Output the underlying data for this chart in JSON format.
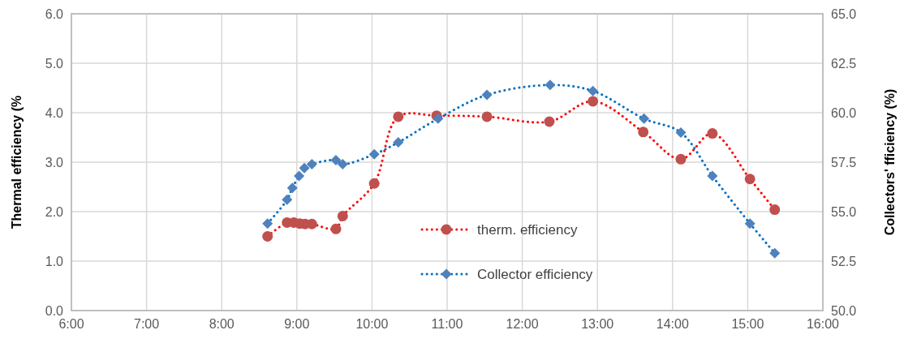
{
  "chart_data": {
    "type": "line",
    "ylabel": "Thermal efficiency (%",
    "y2label": "Collectors' fficiency (%)",
    "xlim": [
      6,
      16
    ],
    "xticks": [
      {
        "value": 6,
        "label": "6:00"
      },
      {
        "value": 7,
        "label": "7:00"
      },
      {
        "value": 8,
        "label": "8:00"
      },
      {
        "value": 9,
        "label": "9:00"
      },
      {
        "value": 10,
        "label": "10:00"
      },
      {
        "value": 11,
        "label": "11:00"
      },
      {
        "value": 12,
        "label": "12:00"
      },
      {
        "value": 13,
        "label": "13:00"
      },
      {
        "value": 14,
        "label": "14:00"
      },
      {
        "value": 15,
        "label": "15:00"
      },
      {
        "value": 16,
        "label": "16:00"
      }
    ],
    "ylim": [
      0,
      6
    ],
    "yticks": [
      {
        "value": 0,
        "label": "0.0"
      },
      {
        "value": 1,
        "label": "1.0"
      },
      {
        "value": 2,
        "label": "2.0"
      },
      {
        "value": 3,
        "label": "3.0"
      },
      {
        "value": 4,
        "label": "4.0"
      },
      {
        "value": 5,
        "label": "5.0"
      },
      {
        "value": 6,
        "label": "6.0"
      }
    ],
    "y2lim": [
      50,
      65
    ],
    "y2ticks": [
      {
        "value": 50,
        "label": "50.0"
      },
      {
        "value": 52.5,
        "label": "52.5"
      },
      {
        "value": 55,
        "label": "55.0"
      },
      {
        "value": 57.5,
        "label": "57.5"
      },
      {
        "value": 60,
        "label": "60.0"
      },
      {
        "value": 62.5,
        "label": "62.5"
      },
      {
        "value": 65,
        "label": "65.0"
      }
    ],
    "grid": true,
    "legend": "bottom",
    "line_style": "dotted",
    "series": [
      {
        "name": "therm. efficiency",
        "color": "#c0504d",
        "marker": "circle",
        "x": [
          8.61,
          8.87,
          8.96,
          9.04,
          9.11,
          9.2,
          9.52,
          9.61,
          10.03,
          10.35,
          10.86,
          11.53,
          12.36,
          12.94,
          13.61,
          14.11,
          14.53,
          15.03,
          15.36
        ],
        "values": [
          1.5,
          1.78,
          1.78,
          1.76,
          1.75,
          1.75,
          1.65,
          1.91,
          2.57,
          3.92,
          3.94,
          3.92,
          3.82,
          4.23,
          3.61,
          3.06,
          3.58,
          2.66,
          2.04
        ]
      },
      {
        "name": "Collector efficiency",
        "color": "#4f81bd",
        "marker": "diamond",
        "axis": "y2",
        "x": [
          8.61,
          8.87,
          8.94,
          9.03,
          9.1,
          9.2,
          9.52,
          9.61,
          10.03,
          10.35,
          10.88,
          11.53,
          12.37,
          12.94,
          13.62,
          14.11,
          14.53,
          15.03,
          15.36
        ],
        "values": [
          54.4,
          55.6,
          56.2,
          56.8,
          57.2,
          57.4,
          57.6,
          57.4,
          57.9,
          58.5,
          59.7,
          60.9,
          61.4,
          61.1,
          59.7,
          59,
          56.8,
          54.4,
          52.9
        ]
      }
    ]
  }
}
